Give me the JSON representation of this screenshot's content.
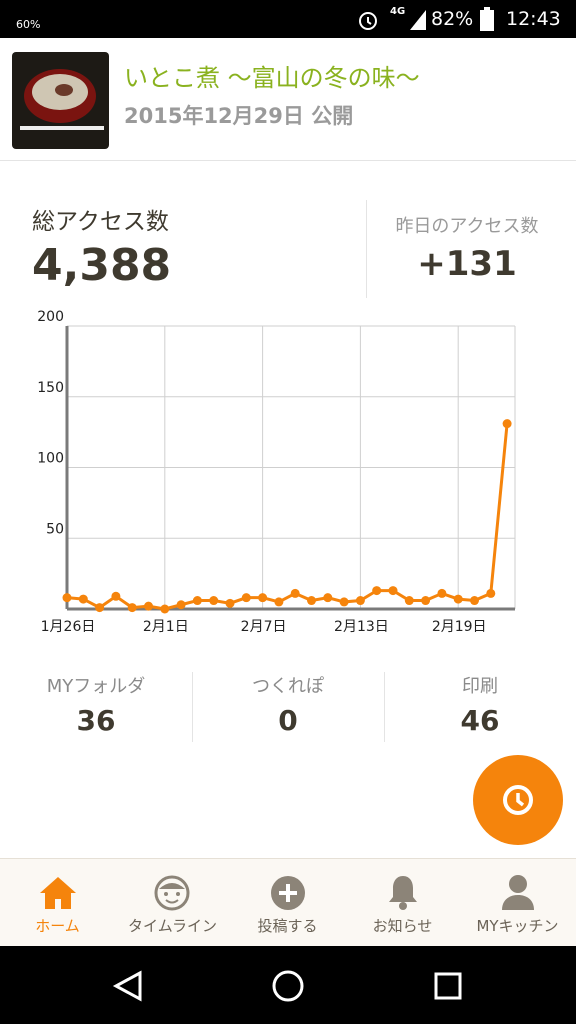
{
  "status_bar": {
    "battery_saver": "60%",
    "network": "4G",
    "battery": "82%",
    "time": "12:43"
  },
  "header": {
    "title": "いとこ煮 〜富山の冬の味〜",
    "date": "2015年12月29日 公開"
  },
  "stats": {
    "total_label": "総アクセス数",
    "total_value": "4,388",
    "yesterday_label": "昨日のアクセス数",
    "yesterday_value": "+131"
  },
  "chart_data": {
    "type": "line",
    "color": "#f5840c",
    "categories": [
      "1月26日",
      null,
      null,
      null,
      null,
      null,
      "2月1日",
      null,
      null,
      null,
      null,
      null,
      "2月7日",
      null,
      null,
      null,
      null,
      null,
      "2月13日",
      null,
      null,
      null,
      null,
      null,
      "2月19日",
      null,
      null,
      null
    ],
    "values": [
      8,
      7,
      1,
      9,
      1,
      2,
      0,
      3,
      6,
      6,
      4,
      8,
      8,
      5,
      11,
      6,
      8,
      5,
      6,
      13,
      13,
      6,
      6,
      11,
      7,
      6,
      11,
      131
    ],
    "ylim": [
      0,
      200
    ],
    "yticks": [
      50,
      100,
      150,
      200
    ],
    "grid": true
  },
  "counters": [
    {
      "label": "MYフォルダ",
      "value": 36
    },
    {
      "label": "つくれぽ",
      "value": 0
    },
    {
      "label": "印刷",
      "value": 46
    }
  ],
  "nav": [
    "ホーム",
    "タイムライン",
    "投稿する",
    "お知らせ",
    "MYキッチン"
  ]
}
